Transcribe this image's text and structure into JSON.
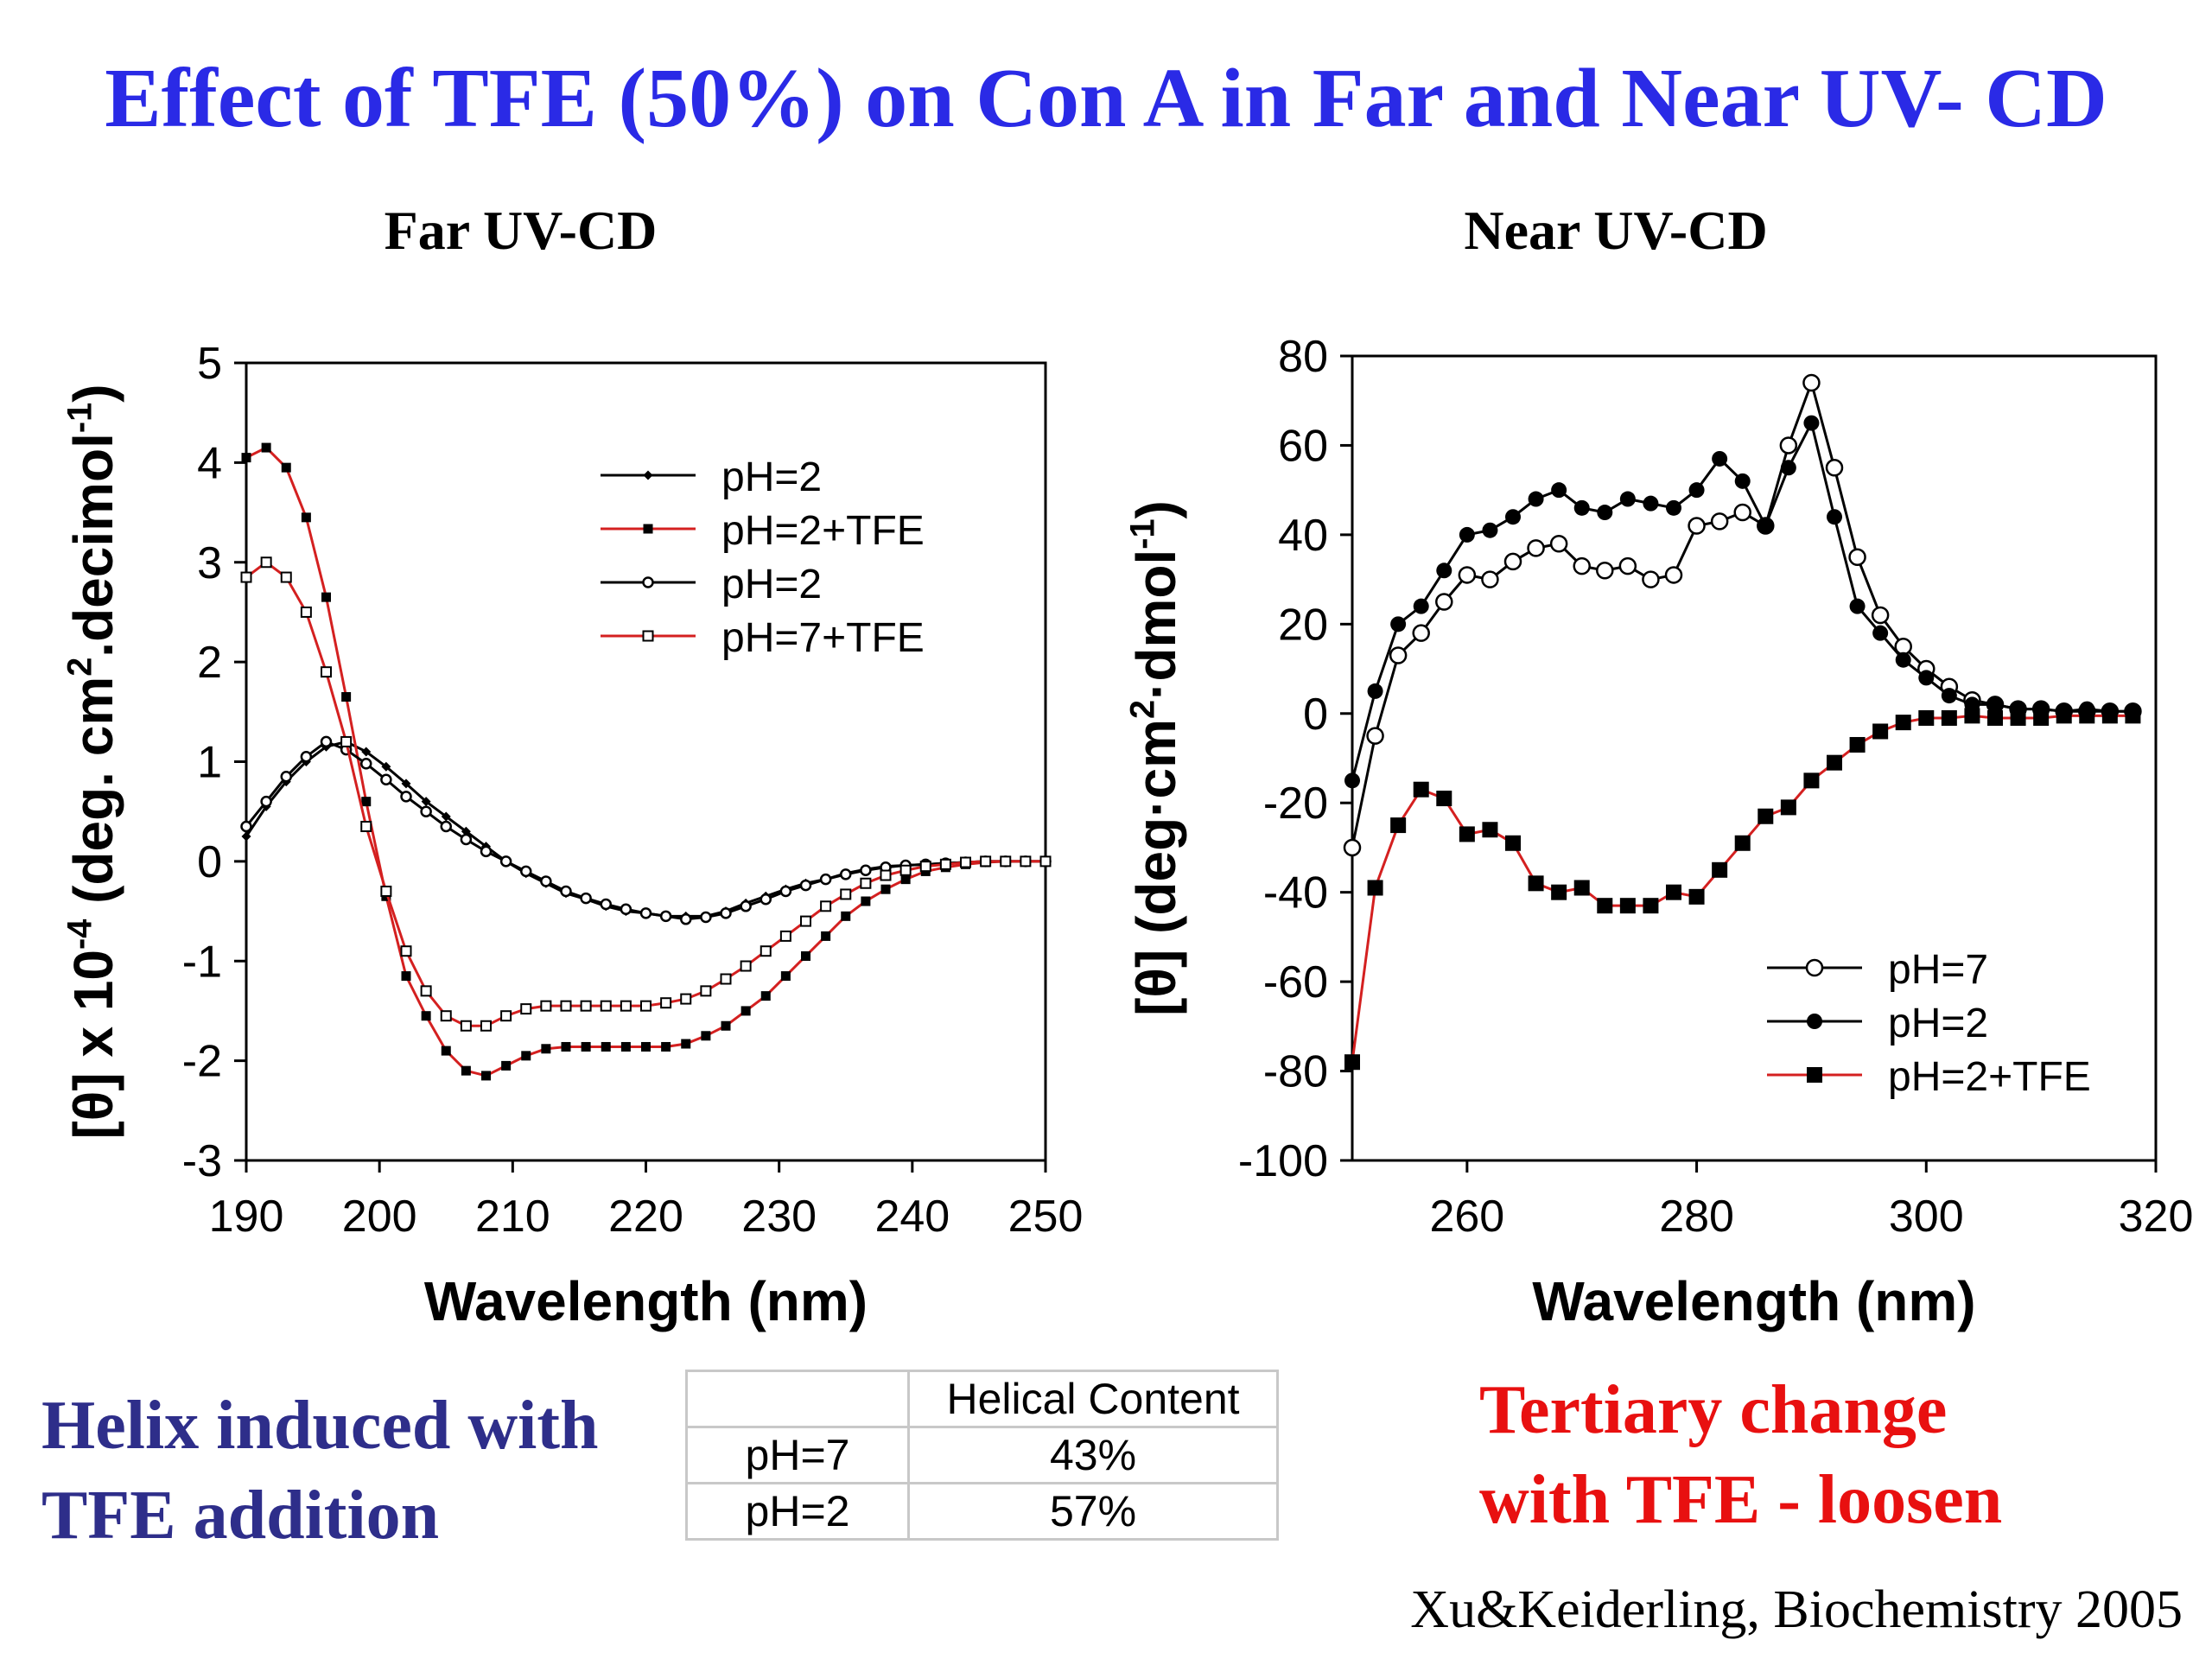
{
  "slide_title": "Effect of TFE (50%) on Con A in Far and Near UV- CD",
  "left_note": [
    "Helix induced with",
    "TFE addition"
  ],
  "right_note": [
    "Tertiary change",
    "with TFE - loosen"
  ],
  "citation": "Xu&Keiderling, Biochemistry 2005",
  "table": {
    "header": [
      "",
      "Helical Content"
    ],
    "rows": [
      [
        "pH=7",
        "43%"
      ],
      [
        "pH=2",
        "57%"
      ]
    ]
  },
  "colors": {
    "title": "#2a2ae6",
    "left_note": "#2e2e8a",
    "right_note": "#e81010",
    "red_line": "#d42020",
    "black": "#000000"
  },
  "chart_data": [
    {
      "type": "line",
      "title": "Far UV-CD",
      "xlabel": "Wavelength (nm)",
      "ylabel": "[θ] x 10^-4 (deg. cm^2.decimol^-1)",
      "xlim": [
        190,
        250
      ],
      "ylim": [
        -3,
        5
      ],
      "xticks": [
        190,
        200,
        210,
        220,
        230,
        240,
        250
      ],
      "yticks": [
        -3,
        -2,
        -1,
        0,
        1,
        2,
        3,
        4,
        5
      ],
      "legend_position": "top-right",
      "series": [
        {
          "name": "pH=2",
          "line_color": "#000000",
          "marker": "small-filled-diamond",
          "x": [
            190,
            191.5,
            193,
            194.5,
            196,
            197.5,
            199,
            200.5,
            202,
            203.5,
            205,
            206.5,
            208,
            209.5,
            211,
            212.5,
            214,
            215.5,
            217,
            218.5,
            220,
            221.5,
            223,
            224.5,
            226,
            227.5,
            229,
            230.5,
            232,
            233.5,
            235,
            236.5,
            238,
            239.5,
            241,
            242.5,
            244,
            245.5,
            247,
            248.5,
            250
          ],
          "y": [
            0.25,
            0.55,
            0.8,
            1.0,
            1.15,
            1.2,
            1.1,
            0.95,
            0.78,
            0.6,
            0.45,
            0.3,
            0.15,
            0.0,
            -0.12,
            -0.22,
            -0.32,
            -0.38,
            -0.45,
            -0.5,
            -0.52,
            -0.55,
            -0.55,
            -0.55,
            -0.5,
            -0.42,
            -0.35,
            -0.28,
            -0.22,
            -0.18,
            -0.12,
            -0.08,
            -0.05,
            -0.04,
            -0.03,
            -0.02,
            -0.01,
            0.0,
            0.0,
            0.0,
            0.0
          ]
        },
        {
          "name": "pH=2+TFE",
          "line_color": "#d42020",
          "marker": "filled-square",
          "x": [
            190,
            191.5,
            193,
            194.5,
            196,
            197.5,
            199,
            200.5,
            202,
            203.5,
            205,
            206.5,
            208,
            209.5,
            211,
            212.5,
            214,
            215.5,
            217,
            218.5,
            220,
            221.5,
            223,
            224.5,
            226,
            227.5,
            229,
            230.5,
            232,
            233.5,
            235,
            236.5,
            238,
            239.5,
            241,
            242.5,
            244,
            245.5,
            247,
            248.5,
            250
          ],
          "y": [
            4.05,
            4.15,
            3.95,
            3.45,
            2.65,
            1.65,
            0.6,
            -0.35,
            -1.15,
            -1.55,
            -1.9,
            -2.1,
            -2.15,
            -2.05,
            -1.95,
            -1.88,
            -1.86,
            -1.86,
            -1.86,
            -1.86,
            -1.86,
            -1.86,
            -1.83,
            -1.75,
            -1.65,
            -1.5,
            -1.35,
            -1.15,
            -0.95,
            -0.75,
            -0.55,
            -0.4,
            -0.28,
            -0.18,
            -0.1,
            -0.06,
            -0.03,
            -0.01,
            0.0,
            0.0,
            0.0
          ]
        },
        {
          "name": "pH=2",
          "line_color": "#000000",
          "marker": "open-circle",
          "x": [
            190,
            191.5,
            193,
            194.5,
            196,
            197.5,
            199,
            200.5,
            202,
            203.5,
            205,
            206.5,
            208,
            209.5,
            211,
            212.5,
            214,
            215.5,
            217,
            218.5,
            220,
            221.5,
            223,
            224.5,
            226,
            227.5,
            229,
            230.5,
            232,
            233.5,
            235,
            236.5,
            238,
            239.5,
            241,
            242.5,
            244,
            245.5,
            247,
            248.5,
            250
          ],
          "y": [
            0.35,
            0.6,
            0.85,
            1.05,
            1.2,
            1.12,
            0.98,
            0.82,
            0.65,
            0.5,
            0.35,
            0.22,
            0.1,
            0.0,
            -0.1,
            -0.2,
            -0.3,
            -0.37,
            -0.43,
            -0.48,
            -0.52,
            -0.55,
            -0.58,
            -0.56,
            -0.52,
            -0.45,
            -0.38,
            -0.3,
            -0.24,
            -0.18,
            -0.13,
            -0.09,
            -0.06,
            -0.04,
            -0.03,
            -0.02,
            -0.01,
            0.0,
            0.0,
            0.0,
            0.0
          ]
        },
        {
          "name": "pH=7+TFE",
          "line_color": "#d42020",
          "marker": "open-square",
          "x": [
            190,
            191.5,
            193,
            194.5,
            196,
            197.5,
            199,
            200.5,
            202,
            203.5,
            205,
            206.5,
            208,
            209.5,
            211,
            212.5,
            214,
            215.5,
            217,
            218.5,
            220,
            221.5,
            223,
            224.5,
            226,
            227.5,
            229,
            230.5,
            232,
            233.5,
            235,
            236.5,
            238,
            239.5,
            241,
            242.5,
            244,
            245.5,
            247,
            248.5,
            250
          ],
          "y": [
            2.85,
            3.0,
            2.85,
            2.5,
            1.9,
            1.2,
            0.35,
            -0.3,
            -0.9,
            -1.3,
            -1.55,
            -1.65,
            -1.65,
            -1.55,
            -1.48,
            -1.45,
            -1.45,
            -1.45,
            -1.45,
            -1.45,
            -1.45,
            -1.42,
            -1.38,
            -1.3,
            -1.18,
            -1.05,
            -0.9,
            -0.75,
            -0.6,
            -0.45,
            -0.33,
            -0.22,
            -0.14,
            -0.09,
            -0.05,
            -0.03,
            -0.01,
            0.0,
            0.0,
            0.0,
            0.0
          ]
        }
      ]
    },
    {
      "type": "line",
      "title": "Near UV-CD",
      "xlabel": "Wavelength (nm)",
      "ylabel": "[θ] (deg·cm^2·dmol^-1)",
      "xlim": [
        250,
        320
      ],
      "ylim": [
        -100,
        80
      ],
      "xticks": [
        260,
        280,
        300,
        320
      ],
      "yticks": [
        -100,
        -80,
        -60,
        -40,
        -20,
        0,
        20,
        40,
        60,
        80
      ],
      "legend_position": "bottom-right",
      "series": [
        {
          "name": "pH=7",
          "line_color": "#000000",
          "marker": "open-circle",
          "x": [
            250,
            252,
            254,
            256,
            258,
            260,
            262,
            264,
            266,
            268,
            270,
            272,
            274,
            276,
            278,
            280,
            282,
            284,
            286,
            288,
            290,
            292,
            294,
            296,
            298,
            300,
            302,
            304,
            306,
            308,
            310,
            312,
            314,
            316,
            318
          ],
          "y": [
            -30,
            -5,
            13,
            18,
            25,
            31,
            30,
            34,
            37,
            38,
            33,
            32,
            33,
            30,
            31,
            42,
            43,
            45,
            42,
            60,
            74,
            55,
            35,
            22,
            15,
            10,
            6,
            3,
            2,
            1,
            1,
            0.5,
            0.5,
            0.5,
            0.5
          ]
        },
        {
          "name": "pH=2",
          "line_color": "#000000",
          "marker": "filled-circle",
          "x": [
            250,
            252,
            254,
            256,
            258,
            260,
            262,
            264,
            266,
            268,
            270,
            272,
            274,
            276,
            278,
            280,
            282,
            284,
            286,
            288,
            290,
            292,
            294,
            296,
            298,
            300,
            302,
            304,
            306,
            308,
            310,
            312,
            314,
            316,
            318
          ],
          "y": [
            -15,
            5,
            20,
            24,
            32,
            40,
            41,
            44,
            48,
            50,
            46,
            45,
            48,
            47,
            46,
            50,
            57,
            52,
            42,
            55,
            65,
            44,
            24,
            18,
            12,
            8,
            4,
            2,
            2,
            1,
            1,
            0.5,
            1,
            0.5,
            0.5
          ]
        },
        {
          "name": "pH=2+TFE",
          "line_color": "#d42020",
          "marker": "filled-square",
          "x": [
            250,
            252,
            254,
            256,
            258,
            260,
            262,
            264,
            266,
            268,
            270,
            272,
            274,
            276,
            278,
            280,
            282,
            284,
            286,
            288,
            290,
            292,
            294,
            296,
            298,
            300,
            302,
            304,
            306,
            308,
            310,
            312,
            314,
            316,
            318
          ],
          "y": [
            -78,
            -39,
            -25,
            -17,
            -19,
            -27,
            -26,
            -29,
            -38,
            -40,
            -39,
            -43,
            -43,
            -43,
            -40,
            -41,
            -35,
            -29,
            -23,
            -21,
            -15,
            -11,
            -7,
            -4,
            -2,
            -1,
            -1,
            -0.5,
            -1,
            -1,
            -1,
            -0.5,
            -0.5,
            -0.5,
            -0.5
          ]
        }
      ]
    }
  ]
}
